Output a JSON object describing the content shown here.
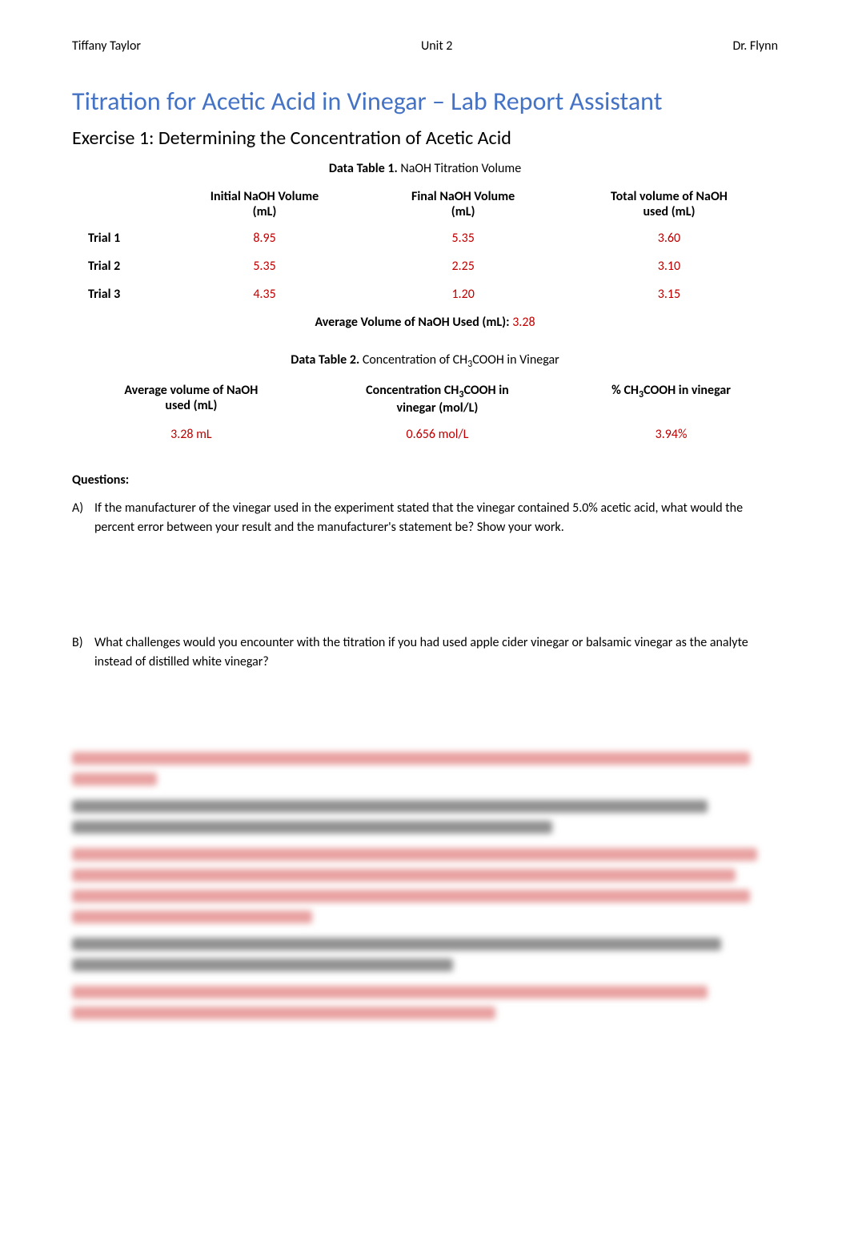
{
  "header": {
    "left": "Tiffany Taylor",
    "center": "Unit 2",
    "right": "Dr. Flynn"
  },
  "title": "Titration for Acetic Acid in Vinegar – Lab Report Assistant",
  "subtitle": "Exercise 1: Determining the Concentration of Acetic Acid",
  "table1": {
    "caption_bold": "Data Table 1.",
    "caption_rest": " NaOH Titration Volume",
    "headers": {
      "blank": "",
      "col1_l1": "Initial NaOH Volume",
      "col1_l2": "(mL)",
      "col2_l1": "Final NaOH Volume",
      "col2_l2": "(mL)",
      "col3_l1": "Total volume of NaOH",
      "col3_l2": "used (mL)"
    },
    "rows": [
      {
        "label": "Trial 1",
        "initial": "8.95",
        "final": "5.35",
        "total": "3.60"
      },
      {
        "label": "Trial 2",
        "initial": "5.35",
        "final": "2.25",
        "total": "3.10"
      },
      {
        "label": "Trial 3",
        "initial": "4.35",
        "final": "1.20",
        "total": "3.15"
      }
    ],
    "avg_label": "Average Volume of NaOH Used (mL): ",
    "avg_value": "3.28"
  },
  "table2": {
    "caption_bold": "Data Table 2.",
    "caption_rest_pre": " Concentration of CH",
    "caption_rest_sub": "3",
    "caption_rest_post": "COOH in Vinegar",
    "headers": {
      "col1_l1": "Average volume of NaOH",
      "col1_l2": "used (mL)",
      "col2_l1_pre": "Concentration CH",
      "col2_l1_sub": "3",
      "col2_l1_post": "COOH in",
      "col2_l2": "vinegar (mol/L)",
      "col3_pre": "% CH",
      "col3_sub": "3",
      "col3_post": "COOH in vinegar"
    },
    "row": {
      "avg": "3.28 mL",
      "conc": "0.656 mol/L",
      "pct": "3.94%"
    }
  },
  "questions_heading": "Questions:",
  "questions": {
    "a_letter": "A)",
    "a_body": "If the manufacturer of the vinegar used in the experiment stated that the vinegar contained 5.0% acetic acid, what would the percent error between your result and the manufacturer's statement be? Show your work.",
    "b_letter": "B)",
    "b_body": "What challenges would you encounter with the titration if you had used apple cider vinegar or balsamic vinegar as the analyte instead of distilled white vinegar?"
  },
  "blurred": {
    "lines": [
      {
        "color": "#e8a0a0",
        "width": "96%"
      },
      {
        "color": "#e8a0a0",
        "width": "12%"
      },
      {
        "color": "#909090",
        "width": "90%"
      },
      {
        "color": "#909090",
        "width": "68%"
      },
      {
        "color": "#e8a0a0",
        "width": "97%"
      },
      {
        "color": "#e8a0a0",
        "width": "94%"
      },
      {
        "color": "#e8a0a0",
        "width": "96%"
      },
      {
        "color": "#e8a0a0",
        "width": "34%"
      },
      {
        "color": "#909090",
        "width": "92%"
      },
      {
        "color": "#909090",
        "width": "54%"
      },
      {
        "color": "#e8a0a0",
        "width": "90%"
      },
      {
        "color": "#e8a0a0",
        "width": "60%"
      }
    ]
  },
  "colors": {
    "title": "#4472c4",
    "data": "#c00000",
    "text": "#000000",
    "bg": "#ffffff"
  }
}
